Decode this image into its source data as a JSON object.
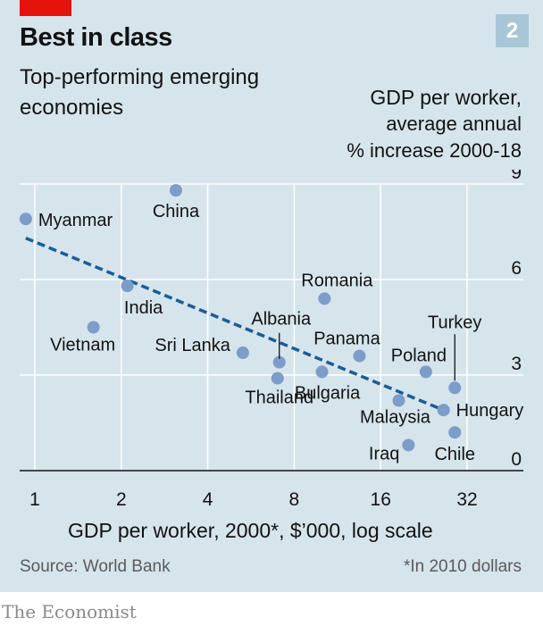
{
  "header": {
    "title": "Best in class",
    "subtitle": "Top-performing emerging economies",
    "badge": "2"
  },
  "footer": {
    "source": "Source: World Bank",
    "footnote": "*In 2010 dollars",
    "brand": "The Economist"
  },
  "colors": {
    "accent_red": "#e3120b",
    "panel_bg": "#d6e4ec",
    "point": "#7c9cc9",
    "trend": "#1a5d96",
    "grid": "#ffffff"
  },
  "chart_data": {
    "type": "scatter",
    "xlabel": "GDP per worker, 2000*, $’000, log scale",
    "ylabel_lines": [
      "GDP per worker,",
      "average annual",
      "% increase 2000-18"
    ],
    "x_scale": "log2",
    "xlim": [
      0.9,
      45
    ],
    "ylim": [
      0,
      9
    ],
    "x_ticks": [
      1,
      2,
      4,
      8,
      16,
      32
    ],
    "y_ticks": [
      0,
      3,
      6,
      9
    ],
    "grid": "vertical and horizontal, white",
    "points": [
      {
        "label": "Myanmar",
        "x": 0.93,
        "y": 7.9
      },
      {
        "label": "China",
        "x": 3.1,
        "y": 8.8
      },
      {
        "label": "India",
        "x": 2.1,
        "y": 5.8
      },
      {
        "label": "Vietnam",
        "x": 1.6,
        "y": 4.5
      },
      {
        "label": "Romania",
        "x": 10.2,
        "y": 5.4
      },
      {
        "label": "Albania",
        "x": 7.1,
        "y": 3.4
      },
      {
        "label": "Sri Lanka",
        "x": 5.3,
        "y": 3.7
      },
      {
        "label": "Thailand",
        "x": 7.0,
        "y": 2.9
      },
      {
        "label": "Bulgaria",
        "x": 10.0,
        "y": 3.1
      },
      {
        "label": "Panama",
        "x": 13.5,
        "y": 3.6
      },
      {
        "label": "Poland",
        "x": 23.0,
        "y": 3.1
      },
      {
        "label": "Turkey",
        "x": 29.0,
        "y": 2.6
      },
      {
        "label": "Malaysia",
        "x": 18.5,
        "y": 2.2
      },
      {
        "label": "Hungary",
        "x": 26.5,
        "y": 1.9
      },
      {
        "label": "Chile",
        "x": 29.0,
        "y": 1.2
      },
      {
        "label": "Iraq",
        "x": 20.0,
        "y": 0.8
      }
    ],
    "trendline": {
      "x": [
        0.93,
        26.5
      ],
      "y": [
        7.3,
        1.9
      ]
    }
  }
}
